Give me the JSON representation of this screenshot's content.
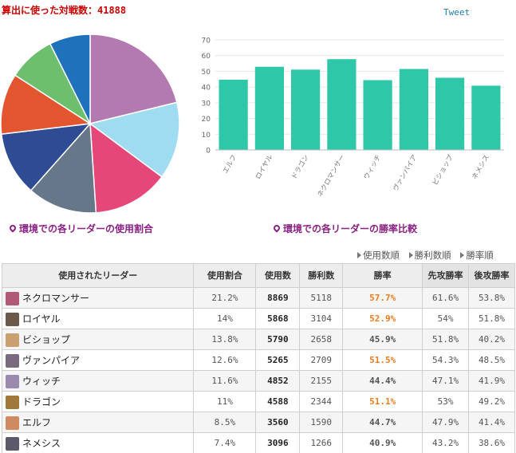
{
  "header": {
    "title": "算出に使った対戦数：41888",
    "tweet_label": "Tweet"
  },
  "captions": {
    "pie": "環境での各リーダーの使用割合",
    "bar": "環境での各リーダーの勝率比較"
  },
  "sort_links": [
    "使用数順",
    "勝利数順",
    "勝率順"
  ],
  "table": {
    "headers": [
      "使用されたリーダー",
      "使用割合",
      "使用数",
      "勝利数",
      "勝率",
      "先攻勝率",
      "後攻勝率"
    ],
    "rows": [
      {
        "leader": "ネクロマンサー",
        "share": "21.2%",
        "uses": "8869",
        "wins": "5118",
        "winrate": "57.7%",
        "first": "61.6%",
        "second": "53.8%",
        "avatar": "#b05a78"
      },
      {
        "leader": "ロイヤル",
        "share": "14%",
        "uses": "5868",
        "wins": "3104",
        "winrate": "52.9%",
        "first": "54%",
        "second": "51.8%",
        "avatar": "#6b5a4a"
      },
      {
        "leader": "ビショップ",
        "share": "13.8%",
        "uses": "5790",
        "wins": "2658",
        "winrate": "45.9%",
        "first": "51.8%",
        "second": "40.2%",
        "avatar": "#c9a070"
      },
      {
        "leader": "ヴァンパイア",
        "share": "12.6%",
        "uses": "5265",
        "wins": "2709",
        "winrate": "51.5%",
        "first": "54.3%",
        "second": "48.5%",
        "avatar": "#7a6a7e"
      },
      {
        "leader": "ウィッチ",
        "share": "11.6%",
        "uses": "4852",
        "wins": "2155",
        "winrate": "44.4%",
        "first": "47.1%",
        "second": "41.9%",
        "avatar": "#9a8ab0"
      },
      {
        "leader": "ドラゴン",
        "share": "11%",
        "uses": "4588",
        "wins": "2344",
        "winrate": "51.1%",
        "first": "53%",
        "second": "49.2%",
        "avatar": "#a0783a"
      },
      {
        "leader": "エルフ",
        "share": "8.5%",
        "uses": "3560",
        "wins": "1590",
        "winrate": "44.7%",
        "first": "47.9%",
        "second": "41.4%",
        "avatar": "#d08a60"
      },
      {
        "leader": "ネメシス",
        "share": "7.4%",
        "uses": "3096",
        "wins": "1266",
        "winrate": "40.9%",
        "first": "43.2%",
        "second": "38.6%",
        "avatar": "#5a5a68"
      }
    ]
  },
  "colors": {
    "winrate_high": "#f07c1e",
    "winrate_low": "#555555",
    "bar": "#2ec8a8"
  },
  "chart_data": [
    {
      "type": "pie",
      "slices": [
        {
          "value": 21.2,
          "color": "#b27ab0"
        },
        {
          "value": 14.0,
          "color": "#9fdcf2"
        },
        {
          "value": 13.8,
          "color": "#e54878"
        },
        {
          "value": 12.6,
          "color": "#67778a"
        },
        {
          "value": 11.6,
          "color": "#2f4b94"
        },
        {
          "value": 11.0,
          "color": "#e2552e"
        },
        {
          "value": 8.5,
          "color": "#6dbe6d"
        },
        {
          "value": 7.4,
          "color": "#1e72bc"
        }
      ]
    },
    {
      "type": "bar",
      "categories": [
        "エルフ",
        "ロイヤル",
        "ドラゴン",
        "ネクロマンサー",
        "ウィッチ",
        "ヴァンパイア",
        "ビショップ",
        "ネメシス"
      ],
      "values": [
        44.7,
        52.9,
        51.1,
        57.7,
        44.4,
        51.5,
        45.9,
        40.9
      ],
      "ylim": [
        0,
        70
      ],
      "yticks": [
        0,
        10,
        20,
        30,
        40,
        50,
        60,
        70
      ],
      "grid": true
    }
  ]
}
